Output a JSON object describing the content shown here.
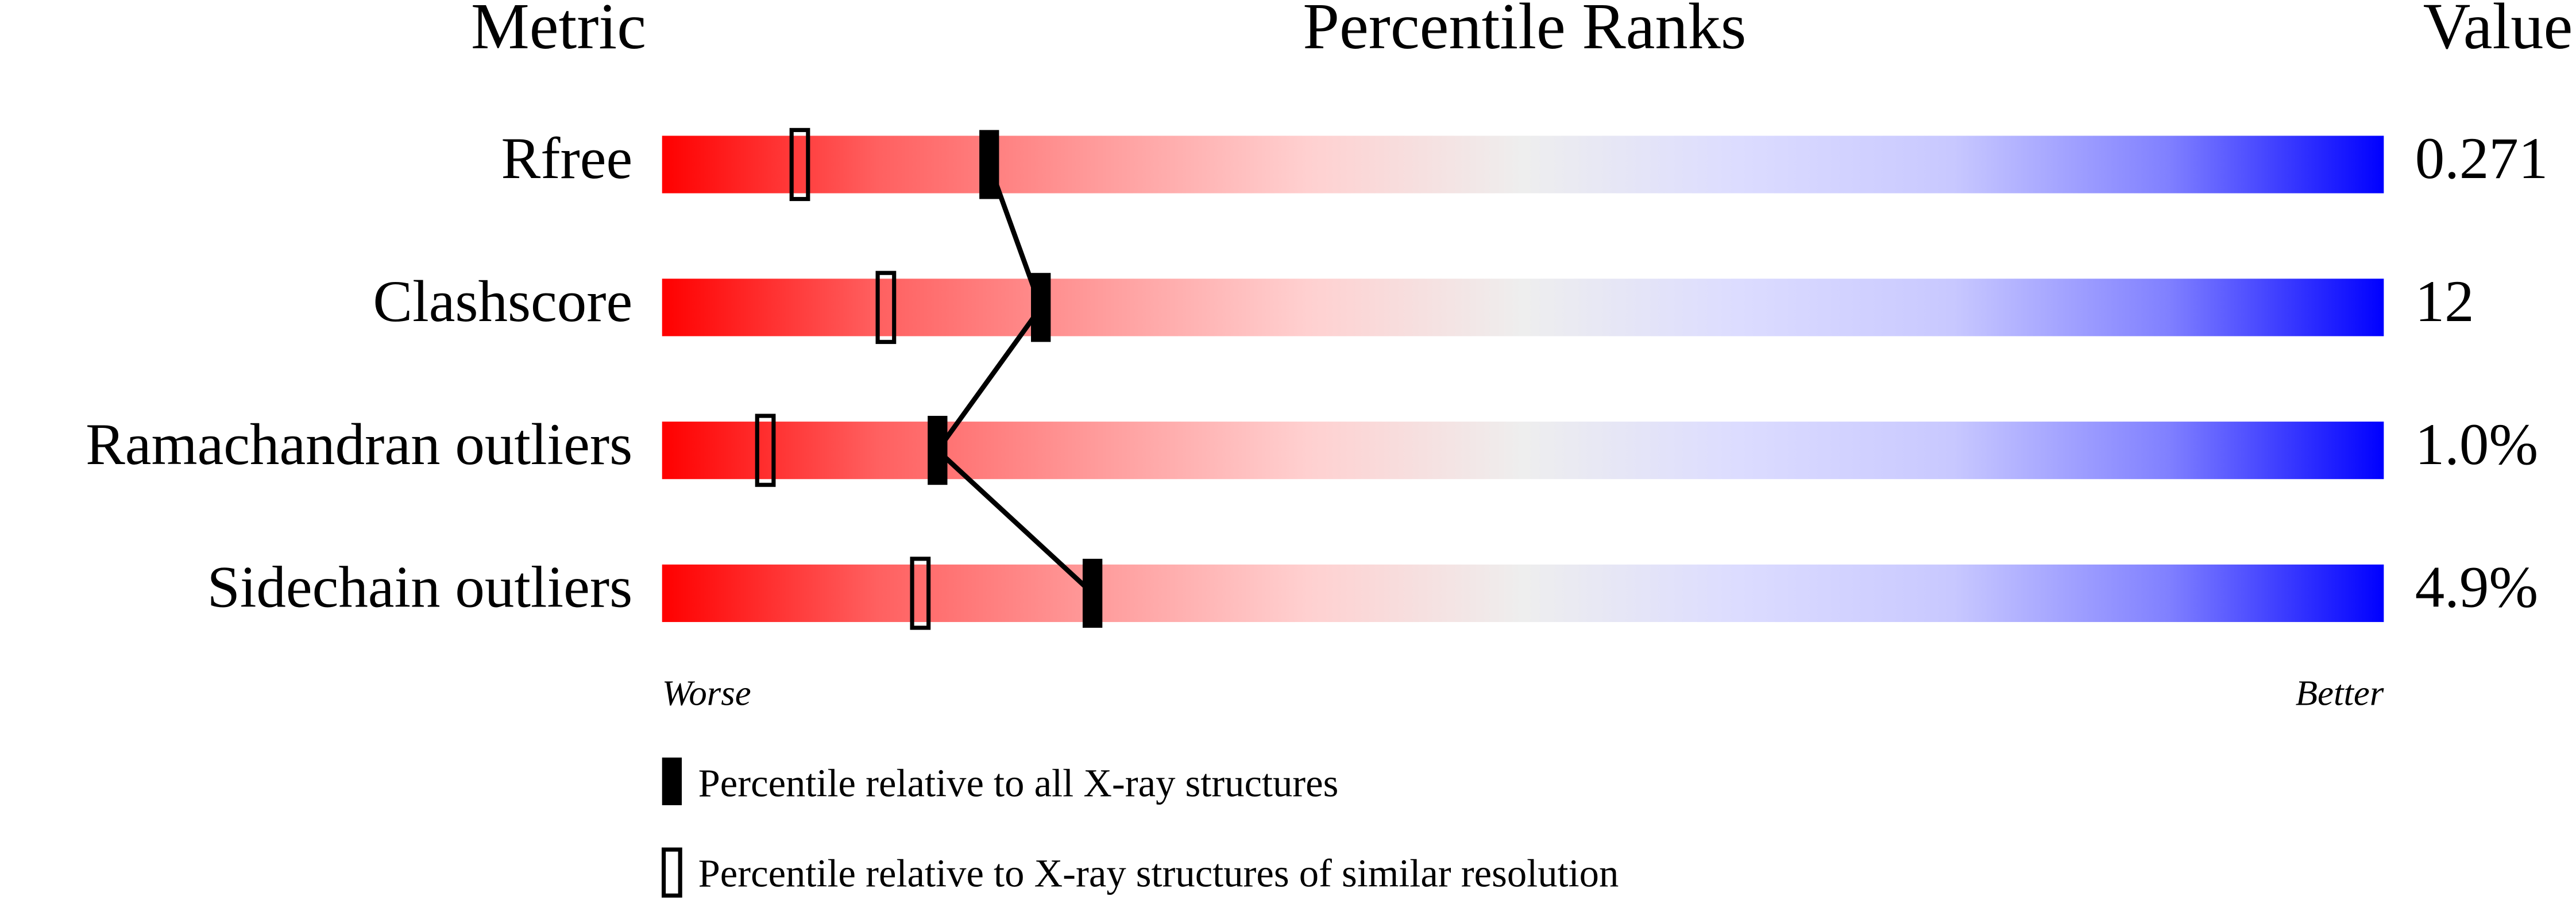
{
  "chart_data": {
    "type": "percentile",
    "column_headers": [
      "Metric",
      "Percentile Ranks",
      "Value"
    ],
    "categories": [
      "Rfree",
      "Clashscore",
      "Ramachandran outliers",
      "Sidechain outliers"
    ],
    "metric_values": [
      "0.271",
      "12",
      "1.0%",
      "4.9%"
    ],
    "series": [
      {
        "name": "Percentile relative to all X-ray structures",
        "style": "filled",
        "color": "#000000",
        "values": [
          19,
          22,
          16,
          25
        ]
      },
      {
        "name": "Percentile relative to X-ray structures of similar resolution",
        "style": "open",
        "color": "#000000",
        "values": [
          8,
          13,
          6,
          15
        ]
      }
    ],
    "xlim": [
      0,
      100
    ],
    "x_end_labels": [
      "Worse",
      "Better"
    ],
    "gradient": [
      "#ff0000",
      "#ff6060",
      "#ff9a9a",
      "#ffd0d0",
      "#eeeeee",
      "#dcdcff",
      "#c8c8ff",
      "#8080ff",
      "#0000ff"
    ]
  }
}
